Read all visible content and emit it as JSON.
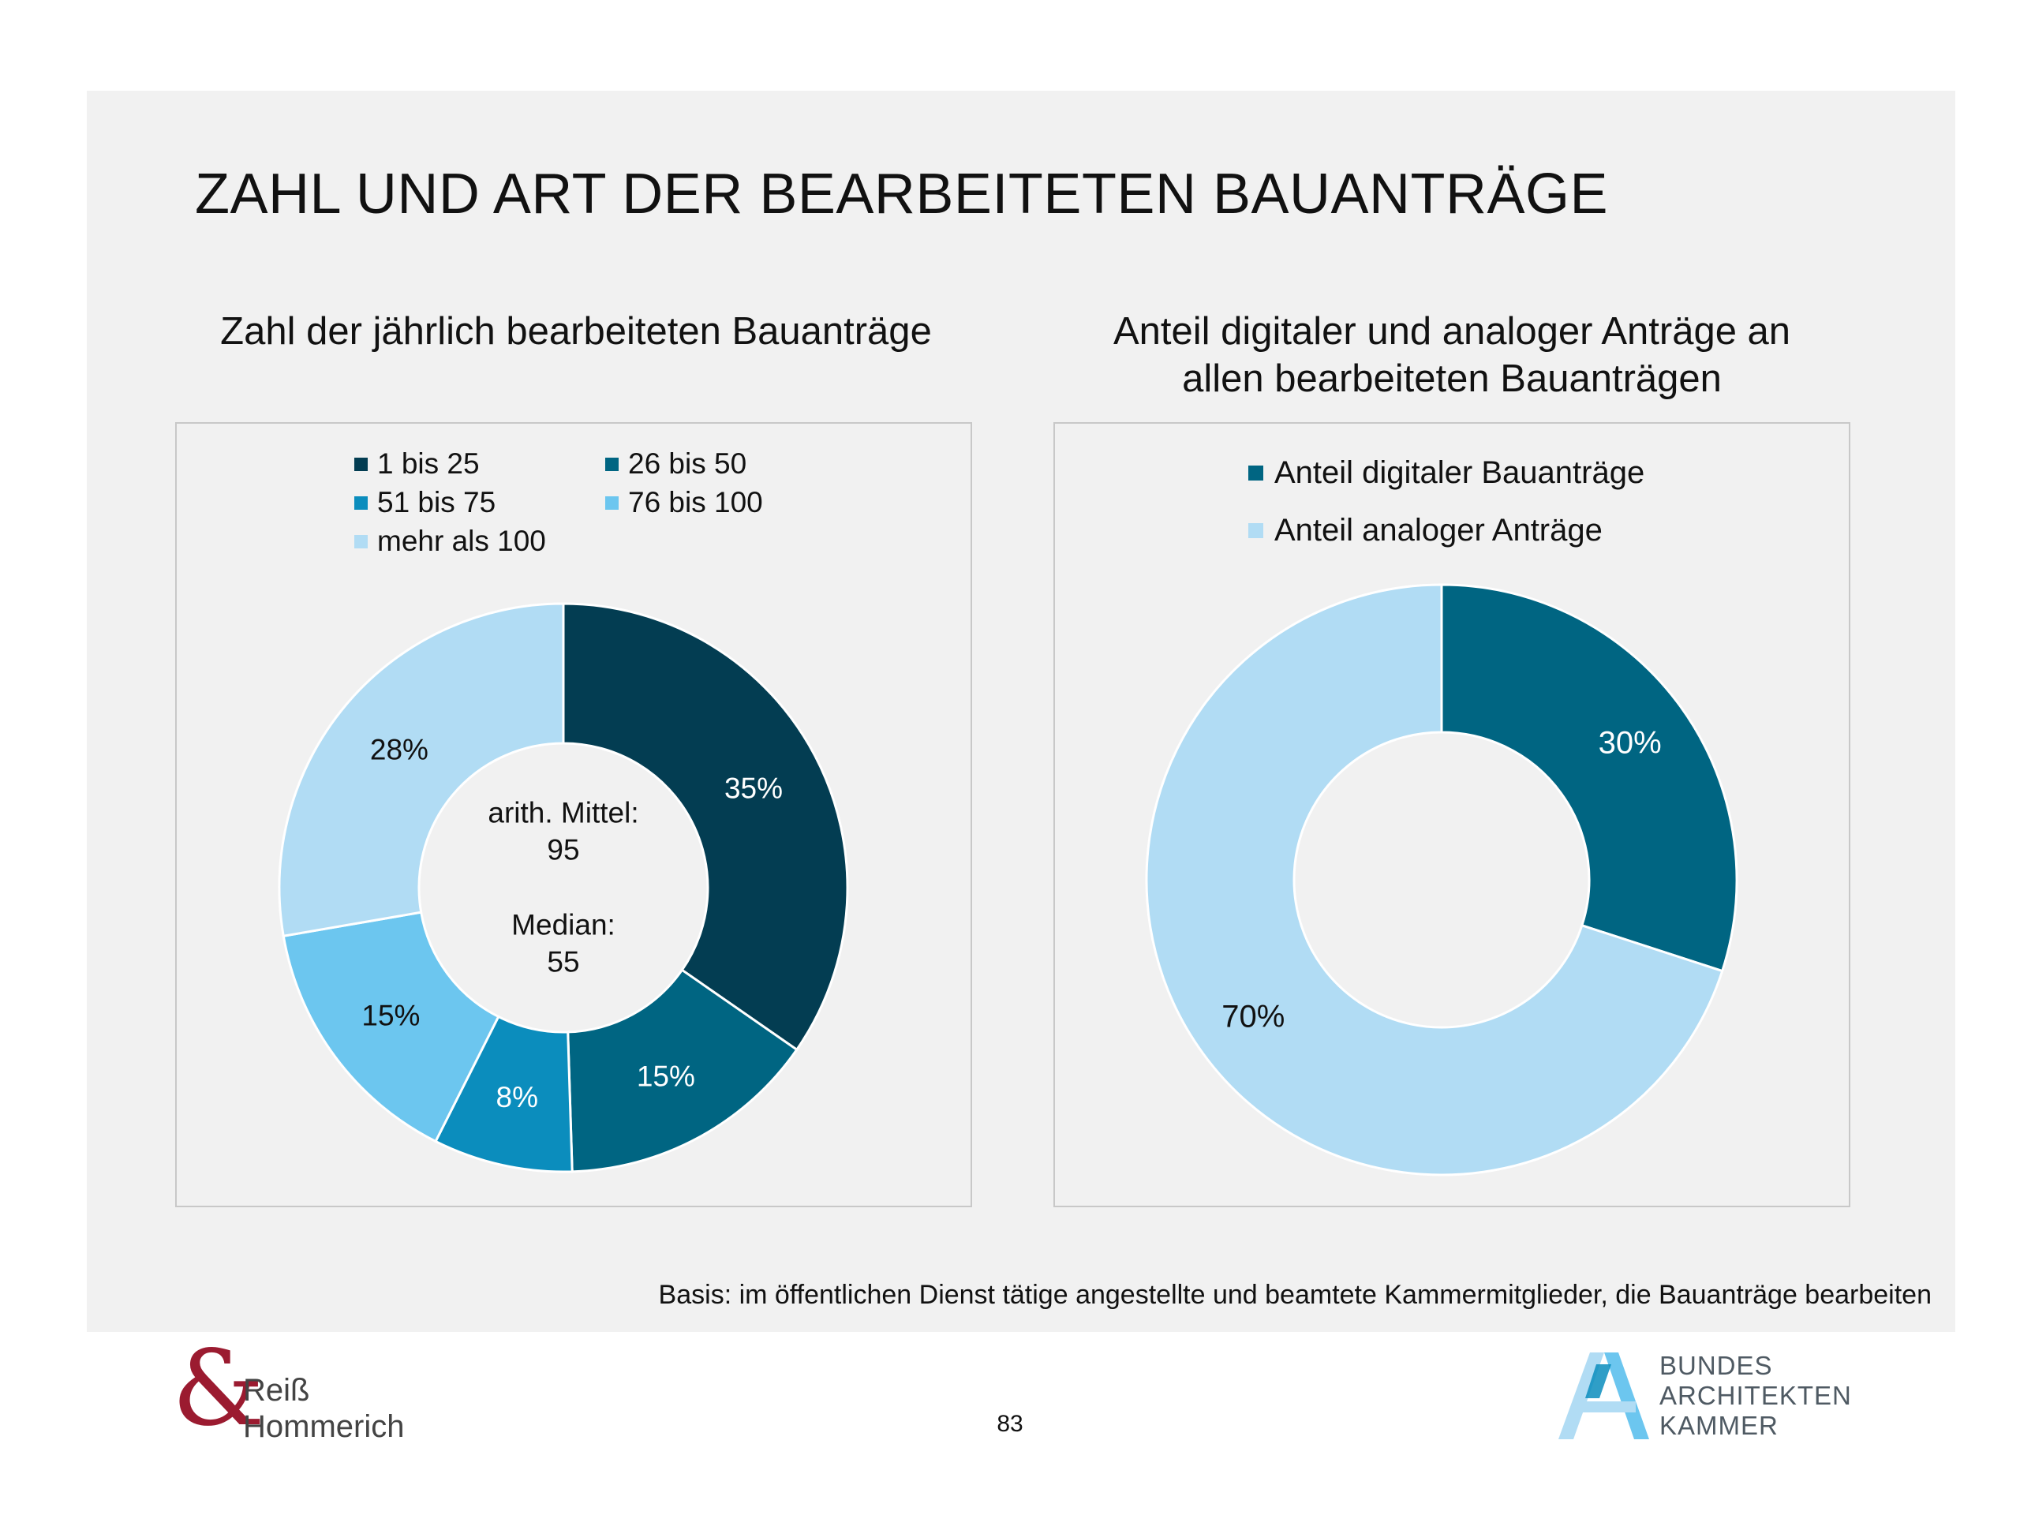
{
  "title": "ZAHL UND ART DER BEARBEITETEN BAUANTRÄGE",
  "footnote": "Basis: im öffentlichen Dienst tätige angestellte und beamtete Kammermitglieder, die Bauanträge bearbeiten",
  "page_number": "83",
  "logos": {
    "left": {
      "symbol": "&",
      "line1": "Reiß",
      "line2": "Hommerich"
    },
    "right": {
      "line1": "BUNDES",
      "line2": "ARCHITEKTEN",
      "line3": "KAMMER"
    }
  },
  "chart_data": [
    {
      "type": "pie",
      "subtype": "donut",
      "title": "Zahl der jährlich bearbeiteten Bauanträge",
      "categories": [
        "1 bis 25",
        "26 bis 50",
        "51 bis 75",
        "76 bis 100",
        "mehr als 100"
      ],
      "values": [
        35,
        15,
        8,
        15,
        28
      ],
      "labels": [
        "35%",
        "15%",
        "8%",
        "15%",
        "28%"
      ],
      "colors": [
        "#033d52",
        "#006582",
        "#0b8dbd",
        "#6cc6ef",
        "#b1dcf4"
      ],
      "label_colors": [
        "#ffffff",
        "#ffffff",
        "#ffffff",
        "#111111",
        "#111111"
      ],
      "center_text": {
        "mean_label": "arith. Mittel:",
        "mean_value": "95",
        "median_label": "Median:",
        "median_value": "55"
      },
      "legend_position": "top"
    },
    {
      "type": "pie",
      "subtype": "donut",
      "title": "Anteil digitaler und analoger Anträge an allen bearbeiteten Bauanträgen",
      "title_lines": [
        "Anteil digitaler und analoger Anträge an",
        "allen bearbeiteten Bauanträgen"
      ],
      "categories": [
        "Anteil digitaler Bauanträge",
        "Anteil analoger Anträge"
      ],
      "values": [
        30,
        70
      ],
      "labels": [
        "30%",
        "70%"
      ],
      "colors": [
        "#006582",
        "#b1dcf4"
      ],
      "label_colors": [
        "#ffffff",
        "#111111"
      ],
      "legend_position": "top"
    }
  ]
}
